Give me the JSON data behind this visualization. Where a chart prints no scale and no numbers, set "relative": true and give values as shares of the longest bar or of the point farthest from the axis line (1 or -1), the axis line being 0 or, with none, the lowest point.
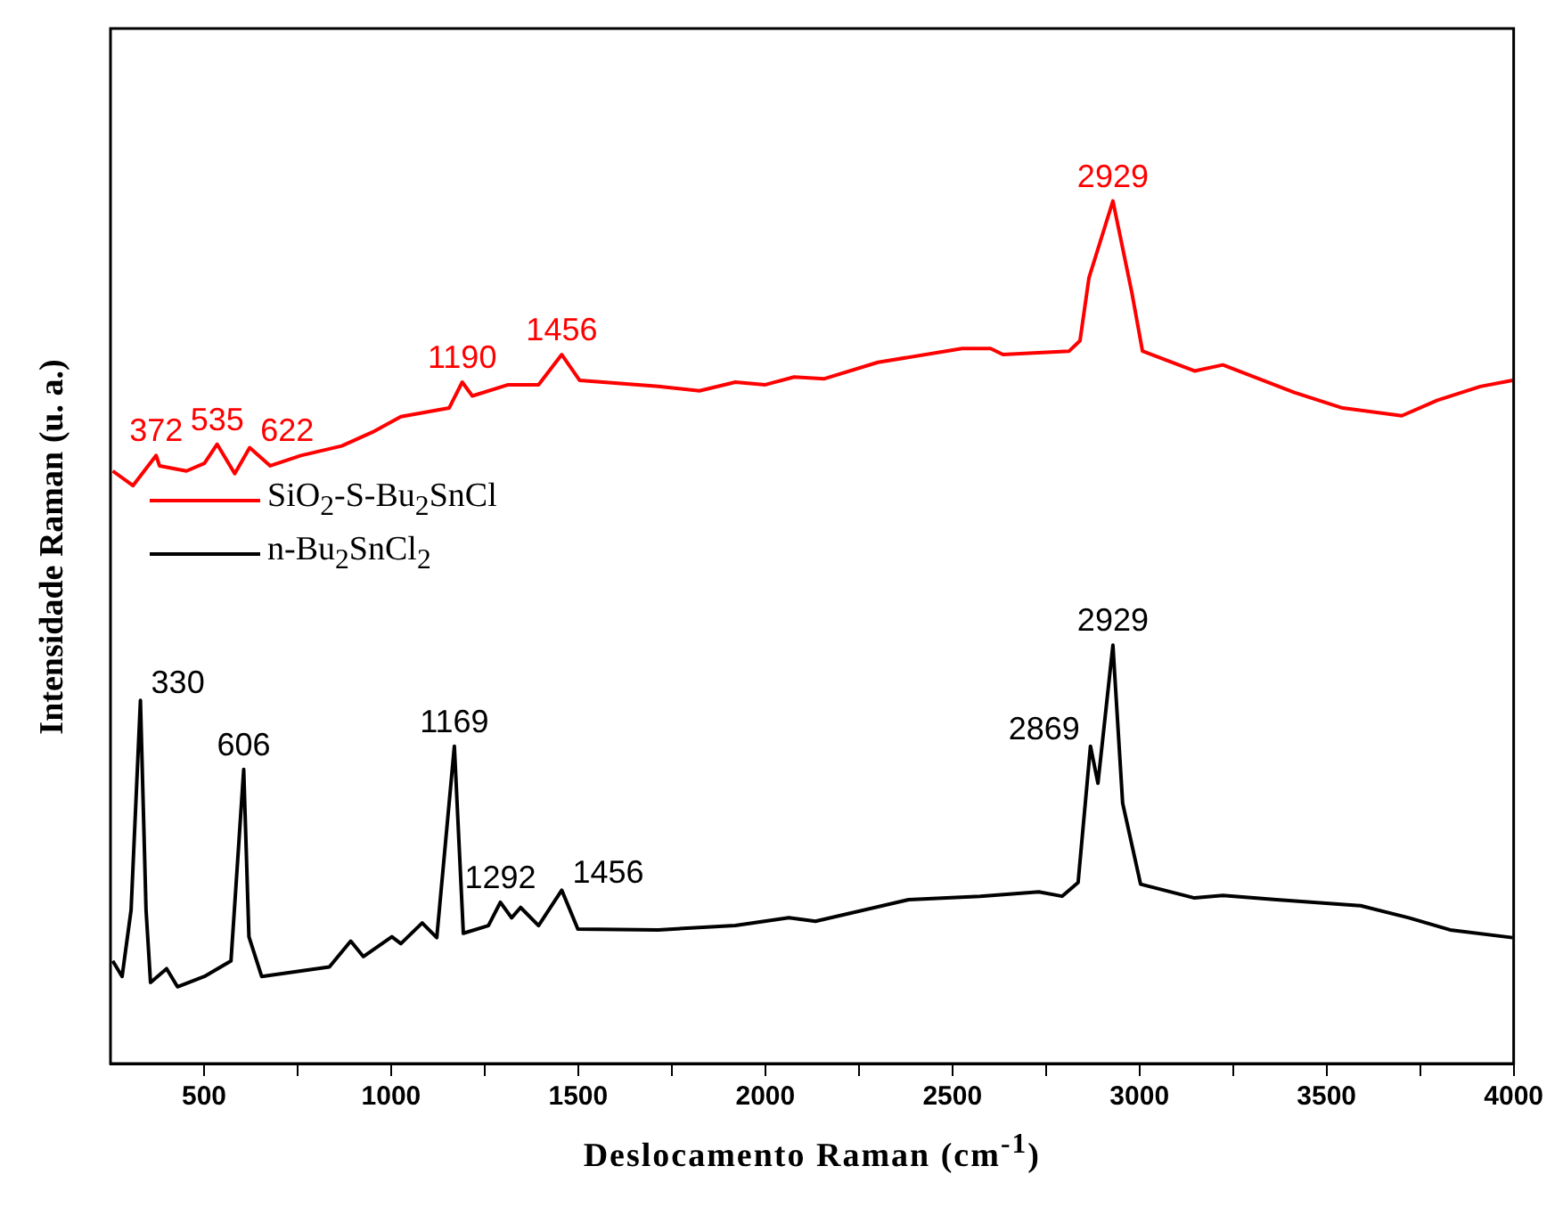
{
  "chart_data": {
    "type": "line",
    "relative": true,
    "xlabel": "Deslocamento Raman (cm$^{-1}$)",
    "ylabel": "Intensidade Raman (u. a.)",
    "xlim": [
      250,
      4000
    ],
    "xticks": [
      500,
      {
        "value": 750,
        "label": null
      },
      1000,
      {
        "value": 1250,
        "label": null
      },
      1500,
      {
        "value": 1750,
        "label": null
      },
      2000,
      {
        "value": 2250,
        "label": null
      },
      2500,
      {
        "value": 2750,
        "label": null
      },
      3000,
      {
        "value": 3250,
        "label": null
      },
      3500,
      {
        "value": 3750,
        "label": null
      },
      4000
    ],
    "tick_labels": "x",
    "legend": "left",
    "series": [
      {
        "name": "SiO$_{2}$-S-Bu$_{2}$SnCl",
        "color": "#ff0000",
        "x": [
          256,
          310,
          372,
          381,
          453,
          501,
          535,
          582,
          622,
          677,
          759,
          868,
          950,
          1026,
          1155,
          1190,
          1217,
          1313,
          1394,
          1456,
          1504,
          1714,
          1824,
          1920,
          2000,
          2077,
          2158,
          2301,
          2526,
          2602,
          2635,
          2812,
          2841,
          2865,
          2929,
          2980,
          3008,
          3147,
          3223,
          3414,
          3543,
          3701,
          3796,
          3911,
          3997
        ],
        "values": [
          0.687,
          0.67,
          0.705,
          0.693,
          0.687,
          0.696,
          0.718,
          0.684,
          0.714,
          0.693,
          0.705,
          0.716,
          0.732,
          0.75,
          0.76,
          0.79,
          0.774,
          0.787,
          0.787,
          0.822,
          0.792,
          0.785,
          0.78,
          0.79,
          0.787,
          0.796,
          0.794,
          0.813,
          0.829,
          0.829,
          0.822,
          0.826,
          0.838,
          0.911,
          1,
          0.893,
          0.826,
          0.803,
          0.81,
          0.778,
          0.76,
          0.751,
          0.769,
          0.785,
          0.792
        ]
      },
      {
        "name": "n-Bu$_{2}$SnCl$_{2}$",
        "color": "#000000",
        "x": [
          256,
          281,
          305,
          330,
          345,
          357,
          400,
          429,
          501,
          572,
          606,
          620,
          654,
          835,
          892,
          926,
          1002,
          1026,
          1083,
          1122,
          1169,
          1193,
          1260,
          1292,
          1322,
          1346,
          1394,
          1456,
          1499,
          1714,
          1920,
          2063,
          2134,
          2383,
          2574,
          2731,
          2793,
          2836,
          2869,
          2889,
          2929,
          2955,
          3003,
          3147,
          3223,
          3366,
          3591,
          3720,
          3830,
          3997
        ],
        "values": [
          0.119,
          0.101,
          0.178,
          0.421,
          0.178,
          0.094,
          0.11,
          0.089,
          0.101,
          0.119,
          0.341,
          0.147,
          0.101,
          0.112,
          0.142,
          0.124,
          0.147,
          0.139,
          0.163,
          0.146,
          0.368,
          0.151,
          0.16,
          0.187,
          0.169,
          0.181,
          0.16,
          0.201,
          0.156,
          0.155,
          0.16,
          0.169,
          0.165,
          0.19,
          0.194,
          0.199,
          0.194,
          0.21,
          0.368,
          0.325,
          0.485,
          0.302,
          0.208,
          0.192,
          0.195,
          0.19,
          0.183,
          0.169,
          0.155,
          0.146
        ]
      }
    ],
    "annotations": [
      {
        "text": "372",
        "x": 372,
        "y": 0.705
      },
      {
        "text": "535",
        "x": 535,
        "y": 0.718
      },
      {
        "text": "622",
        "x": 622,
        "y": 0.714
      },
      {
        "text": "1190",
        "x": 1190,
        "y": 0.79
      },
      {
        "text": "1456",
        "x": 1456,
        "y": 0.822
      },
      {
        "text": "2929",
        "x": 2929,
        "y": 1
      },
      {
        "text": "330",
        "x": 330,
        "y": 0.421
      },
      {
        "text": "606",
        "x": 606,
        "y": 0.341
      },
      {
        "text": "1169",
        "x": 1169,
        "y": 0.368
      },
      {
        "text": "1292",
        "x": 1292,
        "y": 0.187
      },
      {
        "text": "1456",
        "x": 1456,
        "y": 0.201
      },
      {
        "text": "2869",
        "x": 2869,
        "y": 0.368
      },
      {
        "text": "2929",
        "x": 2929,
        "y": 0.485
      }
    ]
  }
}
